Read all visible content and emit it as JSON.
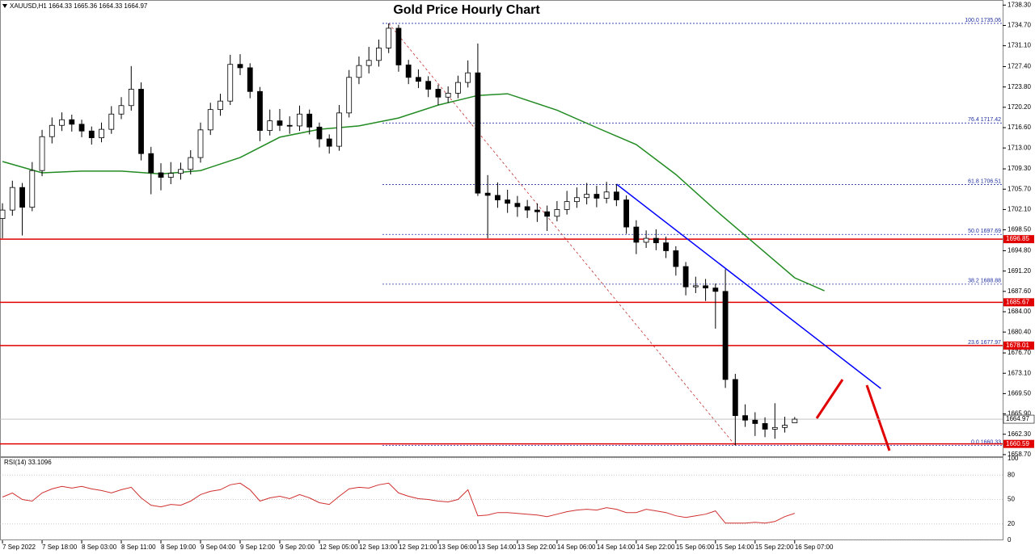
{
  "chart_data": [
    {
      "type": "candlestick",
      "title": "Gold Price Hourly Chart",
      "subtitle": "XAUUSD,H1  1664.33 1665.36 1664.33 1664.97",
      "xlim": [
        -0.25,
        101
      ],
      "ylim": [
        1658.4,
        1739.2
      ],
      "xticks": [
        {
          "value": 0,
          "label": "7 Sep 2022"
        },
        {
          "value": 4,
          "label": "7 Sep 18:00"
        },
        {
          "value": 8,
          "label": "8 Sep 03:00"
        },
        {
          "value": 12,
          "label": "8 Sep 11:00"
        },
        {
          "value": 16,
          "label": "8 Sep 19:00"
        },
        {
          "value": 20,
          "label": "9 Sep 04:00"
        },
        {
          "value": 24,
          "label": "9 Sep 12:00"
        },
        {
          "value": 28,
          "label": "9 Sep 20:00"
        },
        {
          "value": 32,
          "label": "12 Sep 05:00"
        },
        {
          "value": 36,
          "label": "12 Sep 13:00"
        },
        {
          "value": 40,
          "label": "12 Sep 21:00"
        },
        {
          "value": 44,
          "label": "13 Sep 06:00"
        },
        {
          "value": 48,
          "label": "13 Sep 14:00"
        },
        {
          "value": 52,
          "label": "13 Sep 22:00"
        },
        {
          "value": 56,
          "label": "14 Sep 06:00"
        },
        {
          "value": 60,
          "label": "14 Sep 14:00"
        },
        {
          "value": 64,
          "label": "14 Sep 22:00"
        },
        {
          "value": 68,
          "label": "15 Sep 06:00"
        },
        {
          "value": 72,
          "label": "15 Sep 14:00"
        },
        {
          "value": 76,
          "label": "15 Sep 22:00"
        },
        {
          "value": 80,
          "label": "16 Sep 07:00"
        }
      ],
      "yticks": [
        {
          "value": 1658.7,
          "label": "1658.70"
        },
        {
          "value": 1662.3,
          "label": "1662.30"
        },
        {
          "value": 1665.9,
          "label": "1665.90"
        },
        {
          "value": 1669.5,
          "label": "1669.50"
        },
        {
          "value": 1673.1,
          "label": "1673.10"
        },
        {
          "value": 1676.7,
          "label": "1676.70"
        },
        {
          "value": 1680.4,
          "label": "1680.40"
        },
        {
          "value": 1684.0,
          "label": "1684.00"
        },
        {
          "value": 1687.6,
          "label": "1687.60"
        },
        {
          "value": 1691.2,
          "label": "1691.20"
        },
        {
          "value": 1694.8,
          "label": "1694.80"
        },
        {
          "value": 1698.5,
          "label": "1698.50"
        },
        {
          "value": 1702.1,
          "label": "1702.10"
        },
        {
          "value": 1705.7,
          "label": "1705.70"
        },
        {
          "value": 1709.3,
          "label": "1709.30"
        },
        {
          "value": 1713.0,
          "label": "1713.00"
        },
        {
          "value": 1716.6,
          "label": "1716.60"
        },
        {
          "value": 1720.2,
          "label": "1720.20"
        },
        {
          "value": 1723.8,
          "label": "1723.80"
        },
        {
          "value": 1727.4,
          "label": "1727.40"
        },
        {
          "value": 1731.1,
          "label": "1731.10"
        },
        {
          "value": 1734.7,
          "label": "1734.70"
        },
        {
          "value": 1738.3,
          "label": "1738.30"
        }
      ],
      "ohlc": [
        [
          1700.5,
          1703.2,
          1697.0,
          1702.0
        ],
        [
          1702.0,
          1707.2,
          1701.0,
          1706.0
        ],
        [
          1706.0,
          1706.8,
          1697.5,
          1702.5
        ],
        [
          1702.5,
          1710.5,
          1701.8,
          1709.0
        ],
        [
          1709.0,
          1716.2,
          1708.0,
          1715.0
        ],
        [
          1715.0,
          1718.4,
          1713.8,
          1717.0
        ],
        [
          1717.0,
          1719.3,
          1716.0,
          1718.0
        ],
        [
          1718.0,
          1718.9,
          1715.9,
          1717.2
        ],
        [
          1717.2,
          1718.0,
          1714.9,
          1716.0
        ],
        [
          1716.0,
          1716.8,
          1713.6,
          1714.8
        ],
        [
          1714.8,
          1717.5,
          1714.0,
          1716.3
        ],
        [
          1716.3,
          1720.4,
          1715.5,
          1719.0
        ],
        [
          1719.0,
          1722.0,
          1718.1,
          1720.5
        ],
        [
          1720.5,
          1727.5,
          1719.6,
          1723.4
        ],
        [
          1723.4,
          1724.6,
          1710.8,
          1712.0
        ],
        [
          1712.0,
          1713.2,
          1704.8,
          1708.6
        ],
        [
          1708.6,
          1710.3,
          1705.5,
          1707.8
        ],
        [
          1707.8,
          1710.5,
          1706.6,
          1708.5
        ],
        [
          1708.5,
          1710.4,
          1707.4,
          1709.2
        ],
        [
          1709.2,
          1712.6,
          1708.3,
          1711.3
        ],
        [
          1711.3,
          1717.5,
          1710.4,
          1716.2
        ],
        [
          1716.2,
          1721.0,
          1715.3,
          1719.8
        ],
        [
          1719.8,
          1722.6,
          1718.7,
          1721.3
        ],
        [
          1721.3,
          1729.5,
          1720.6,
          1727.8
        ],
        [
          1727.8,
          1729.6,
          1725.9,
          1727.2
        ],
        [
          1727.2,
          1728.0,
          1721.8,
          1723.0
        ],
        [
          1723.0,
          1723.8,
          1714.2,
          1716.1
        ],
        [
          1716.1,
          1719.8,
          1715.2,
          1717.8
        ],
        [
          1717.8,
          1719.9,
          1716.0,
          1717.0
        ],
        [
          1717.0,
          1718.6,
          1715.5,
          1716.9
        ],
        [
          1716.9,
          1720.5,
          1716.0,
          1719.0
        ],
        [
          1719.0,
          1719.8,
          1715.4,
          1716.7
        ],
        [
          1716.7,
          1717.5,
          1713.1,
          1714.6
        ],
        [
          1714.6,
          1715.4,
          1712.0,
          1713.3
        ],
        [
          1713.3,
          1720.6,
          1712.5,
          1719.2
        ],
        [
          1719.2,
          1726.8,
          1718.4,
          1725.5
        ],
        [
          1725.5,
          1729.2,
          1724.3,
          1727.6
        ],
        [
          1727.6,
          1730.9,
          1726.2,
          1728.5
        ],
        [
          1728.5,
          1732.2,
          1727.4,
          1730.7
        ],
        [
          1730.7,
          1735.06,
          1729.8,
          1734.2
        ],
        [
          1734.2,
          1734.8,
          1726.5,
          1727.7
        ],
        [
          1727.7,
          1728.6,
          1724.3,
          1725.5
        ],
        [
          1725.5,
          1726.9,
          1723.6,
          1724.8
        ],
        [
          1724.8,
          1725.7,
          1722.0,
          1723.4
        ],
        [
          1723.4,
          1724.2,
          1720.6,
          1722.0
        ],
        [
          1722.0,
          1723.9,
          1721.0,
          1722.7
        ],
        [
          1722.7,
          1725.8,
          1721.8,
          1724.6
        ],
        [
          1724.6,
          1728.5,
          1723.7,
          1726.3
        ],
        [
          1726.3,
          1731.5,
          1704.5,
          1705.0
        ],
        [
          1705.0,
          1708.2,
          1697.0,
          1704.6
        ],
        [
          1704.6,
          1706.9,
          1702.4,
          1703.8
        ],
        [
          1703.8,
          1705.6,
          1701.5,
          1703.2
        ],
        [
          1703.2,
          1704.5,
          1700.8,
          1702.6
        ],
        [
          1702.6,
          1703.8,
          1700.6,
          1702.0
        ],
        [
          1702.0,
          1703.2,
          1699.9,
          1701.7
        ],
        [
          1701.7,
          1702.8,
          1698.3,
          1700.9
        ],
        [
          1700.9,
          1703.6,
          1700.0,
          1702.1
        ],
        [
          1702.1,
          1705.4,
          1701.2,
          1703.5
        ],
        [
          1703.5,
          1706.0,
          1702.4,
          1704.2
        ],
        [
          1704.2,
          1706.8,
          1703.0,
          1704.8
        ],
        [
          1704.8,
          1706.3,
          1702.5,
          1704.1
        ],
        [
          1704.1,
          1707.0,
          1703.2,
          1705.2
        ],
        [
          1705.2,
          1706.6,
          1702.7,
          1703.8
        ],
        [
          1703.8,
          1704.6,
          1697.8,
          1699.0
        ],
        [
          1699.0,
          1700.2,
          1694.2,
          1696.3
        ],
        [
          1696.3,
          1698.4,
          1695.3,
          1697.0
        ],
        [
          1697.0,
          1698.6,
          1694.9,
          1696.2
        ],
        [
          1696.2,
          1697.3,
          1693.5,
          1694.8
        ],
        [
          1694.8,
          1695.6,
          1690.4,
          1692.0
        ],
        [
          1692.0,
          1692.8,
          1686.9,
          1688.4
        ],
        [
          1688.4,
          1690.2,
          1687.3,
          1688.6
        ],
        [
          1688.6,
          1689.8,
          1685.9,
          1688.2
        ],
        [
          1688.2,
          1689.0,
          1681.0,
          1687.6
        ],
        [
          1687.6,
          1691.5,
          1670.5,
          1672.0
        ],
        [
          1672.0,
          1673.0,
          1660.33,
          1665.6
        ],
        [
          1665.6,
          1667.6,
          1663.6,
          1664.8
        ],
        [
          1664.8,
          1666.2,
          1662.0,
          1664.2
        ],
        [
          1664.2,
          1665.3,
          1661.8,
          1663.2
        ],
        [
          1663.2,
          1667.8,
          1661.5,
          1663.5
        ],
        [
          1663.5,
          1665.4,
          1662.6,
          1663.9
        ],
        [
          1664.33,
          1665.36,
          1664.33,
          1664.97
        ]
      ],
      "moving_average": {
        "color": "#228b22",
        "x": [
          0,
          4,
          8,
          12,
          16,
          20,
          24,
          28,
          32,
          36,
          40,
          44,
          48,
          51,
          56,
          60,
          64,
          68,
          72,
          76,
          80,
          83
        ],
        "values": [
          1710.6,
          1708.6,
          1708.9,
          1708.9,
          1708.4,
          1709.0,
          1711.3,
          1714.9,
          1716.3,
          1716.9,
          1718.3,
          1720.6,
          1722.3,
          1722.6,
          1719.7,
          1716.6,
          1713.6,
          1708.3,
          1702.0,
          1696.0,
          1690.0,
          1687.7
        ]
      },
      "trendline": {
        "color": "#0000ff",
        "x": [
          62,
          88.7
        ],
        "values": [
          1706.6,
          1670.4
        ]
      },
      "fib_levels": [
        {
          "value": 1735.06,
          "label": "100.0 1735.06"
        },
        {
          "value": 1717.42,
          "label": "76.4 1717.42"
        },
        {
          "value": 1706.51,
          "label": "61.8 1706.51"
        },
        {
          "value": 1697.69,
          "label": "50.0 1697.69"
        },
        {
          "value": 1688.88,
          "label": "38.2 1688.88"
        },
        {
          "value": 1677.97,
          "label": "23.6 1677.97"
        },
        {
          "value": 1660.33,
          "label": "0.0 1660.33"
        }
      ],
      "levels": [
        {
          "value": 1696.85,
          "label": "1696.85"
        },
        {
          "value": 1685.67,
          "label": "1685.67"
        },
        {
          "value": 1678.01,
          "label": "1678.01"
        },
        {
          "value": 1660.59,
          "label": "1660.59"
        }
      ],
      "level_color": "#e00000",
      "last_price": {
        "value": 1664.97,
        "label": "1664.97"
      }
    },
    {
      "type": "line",
      "title": "RSI(14) 33.1096",
      "color": "#d03030",
      "ylim": [
        0,
        100
      ],
      "yticks": [
        0,
        20,
        50,
        80,
        100
      ],
      "values": [
        53,
        58,
        50,
        48,
        58,
        63,
        66,
        64,
        66,
        63,
        61,
        58,
        62,
        65,
        52,
        43,
        41,
        44,
        43,
        48,
        56,
        60,
        62,
        68,
        70,
        62,
        48,
        52,
        54,
        51,
        56,
        52,
        46,
        44,
        54,
        63,
        65,
        64,
        68,
        70,
        58,
        54,
        51,
        50,
        48,
        47,
        50,
        62,
        30,
        31,
        34,
        34,
        33,
        32,
        31,
        29,
        32,
        35,
        37,
        38,
        37,
        40,
        38,
        34,
        34,
        38,
        36,
        34,
        30,
        28,
        30,
        32,
        36,
        21,
        21,
        21,
        22,
        21,
        23,
        29,
        33.11
      ]
    }
  ]
}
